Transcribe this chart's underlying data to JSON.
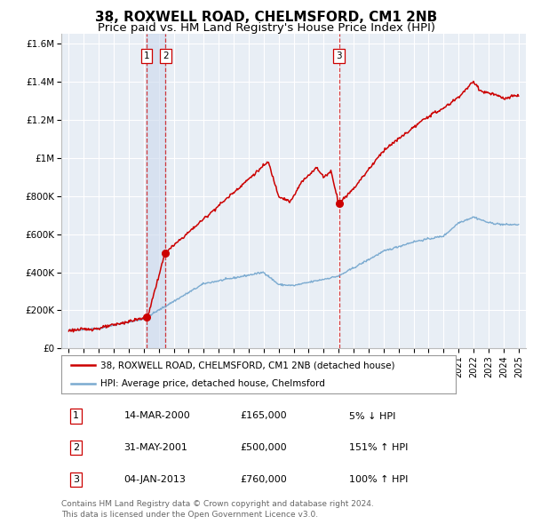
{
  "title": "38, ROXWELL ROAD, CHELMSFORD, CM1 2NB",
  "subtitle": "Price paid vs. HM Land Registry's House Price Index (HPI)",
  "title_fontsize": 11,
  "subtitle_fontsize": 9.5,
  "background_color": "#ffffff",
  "plot_bg_color": "#e8eef5",
  "grid_color": "#ffffff",
  "red_line_color": "#cc0000",
  "blue_line_color": "#7aaad0",
  "transactions": [
    {
      "label": "1",
      "date_num": 2000.2,
      "price": 165000,
      "note": "14-MAR-2000",
      "pct": "5% ↓ HPI"
    },
    {
      "label": "2",
      "date_num": 2001.42,
      "price": 500000,
      "note": "31-MAY-2001",
      "pct": "151% ↑ HPI"
    },
    {
      "label": "3",
      "date_num": 2013.02,
      "price": 760000,
      "note": "04-JAN-2013",
      "pct": "100% ↑ HPI"
    }
  ],
  "shade_x1": 2000.2,
  "shade_x2": 2001.42,
  "ylim": [
    0,
    1650000
  ],
  "xlim_start": 1994.5,
  "xlim_end": 2025.5,
  "ytick_values": [
    0,
    200000,
    400000,
    600000,
    800000,
    1000000,
    1200000,
    1400000,
    1600000
  ],
  "ytick_labels": [
    "£0",
    "£200K",
    "£400K",
    "£600K",
    "£800K",
    "£1M",
    "£1.2M",
    "£1.4M",
    "£1.6M"
  ],
  "xtick_years": [
    1995,
    1996,
    1997,
    1998,
    1999,
    2000,
    2001,
    2002,
    2003,
    2004,
    2005,
    2006,
    2007,
    2008,
    2009,
    2010,
    2011,
    2012,
    2013,
    2014,
    2015,
    2016,
    2017,
    2018,
    2019,
    2020,
    2021,
    2022,
    2023,
    2024,
    2025
  ],
  "legend_line1": "38, ROXWELL ROAD, CHELMSFORD, CM1 2NB (detached house)",
  "legend_line2": "HPI: Average price, detached house, Chelmsford",
  "footer1": "Contains HM Land Registry data © Crown copyright and database right 2024.",
  "footer2": "This data is licensed under the Open Government Licence v3.0.",
  "table_rows": [
    [
      "1",
      "14-MAR-2000",
      "£165,000",
      "5% ↓ HPI"
    ],
    [
      "2",
      "31-MAY-2001",
      "£500,000",
      "151% ↑ HPI"
    ],
    [
      "3",
      "04-JAN-2013",
      "£760,000",
      "100% ↑ HPI"
    ]
  ]
}
